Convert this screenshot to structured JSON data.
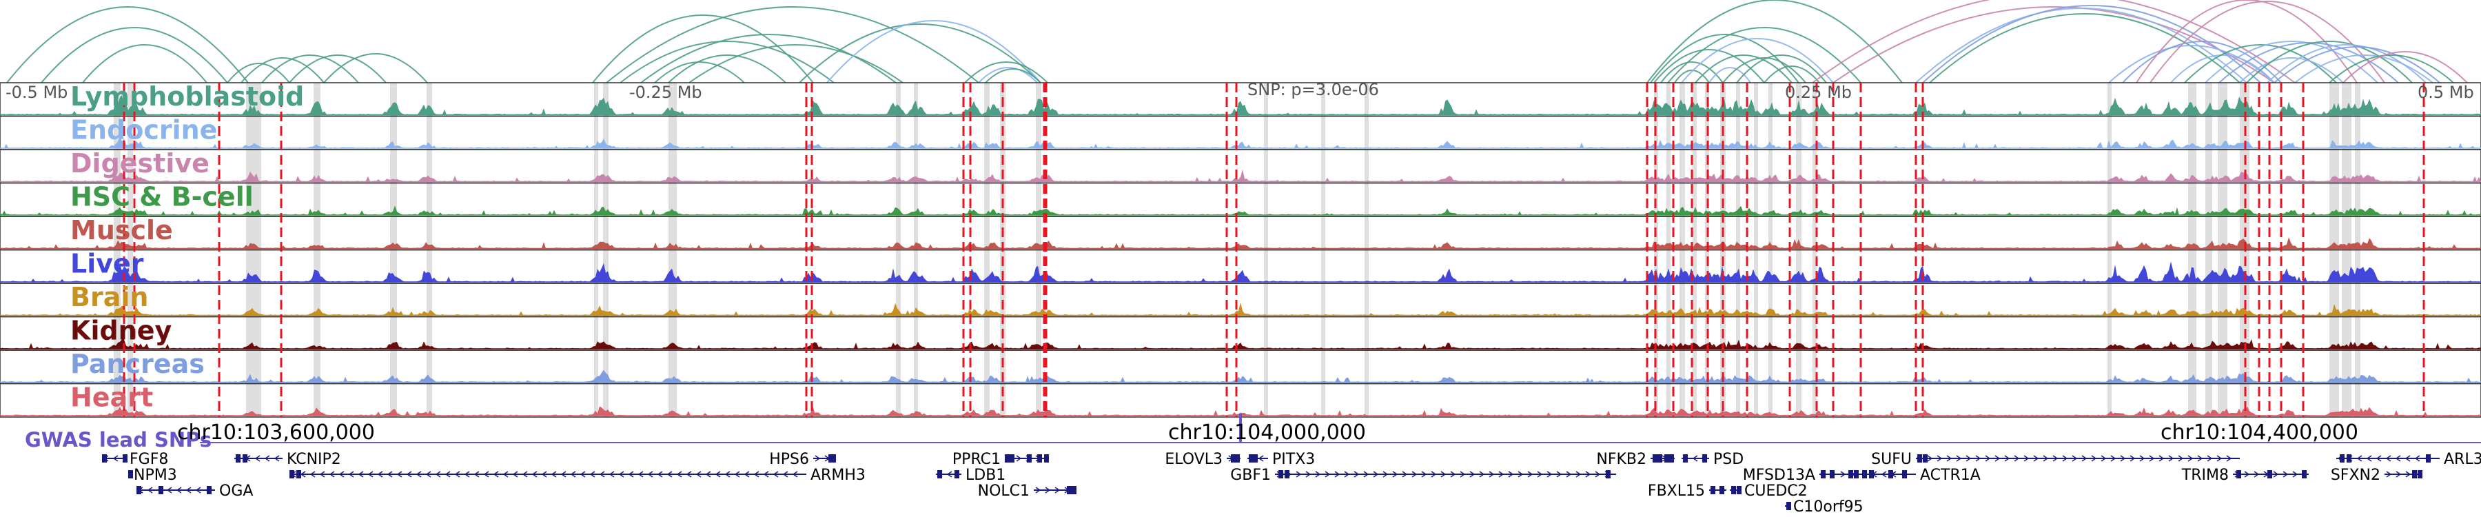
{
  "region_labels": {
    "left": "-0.5 Mb",
    "left_mid": "-0.25 Mb",
    "center": "SNP: p=3.0e-06",
    "right_mid": "0.25 Mb",
    "right": "0.5 Mb"
  },
  "tracks": [
    {
      "label": "Lymphoblastoid",
      "color": "#4c9f86"
    },
    {
      "label": "Endocrine",
      "color": "#8cb4ec"
    },
    {
      "label": "Digestive",
      "color": "#c985ad"
    },
    {
      "label": "HSC & B-cell",
      "color": "#3e9a48"
    },
    {
      "label": "Muscle",
      "color": "#c0574f"
    },
    {
      "label": "Liver",
      "color": "#4347d9"
    },
    {
      "label": "Brain",
      "color": "#c8901e"
    },
    {
      "label": "Kidney",
      "color": "#6b0c0c"
    },
    {
      "label": "Pancreas",
      "color": "#7f9ee0"
    },
    {
      "label": "Heart",
      "color": "#d9606a"
    }
  ],
  "gwas_label": "GWAS lead SNPs",
  "coordinates": [
    "chr10:103,600,000",
    "chr10:104,000,000",
    "chr10:104,400,000"
  ],
  "genes": [
    {
      "name": "FGF8",
      "strand": "-"
    },
    {
      "name": "NPM3",
      "strand": "-"
    },
    {
      "name": "OGA",
      "strand": "-"
    },
    {
      "name": "KCNIP2",
      "strand": "-"
    },
    {
      "name": "ARMH3",
      "strand": "-"
    },
    {
      "name": "HPS6",
      "strand": "+"
    },
    {
      "name": "PPRC1",
      "strand": "+"
    },
    {
      "name": "LDB1",
      "strand": "-"
    },
    {
      "name": "NOLC1",
      "strand": "+"
    },
    {
      "name": "ELOVL3",
      "strand": "+"
    },
    {
      "name": "PITX3",
      "strand": "-"
    },
    {
      "name": "GBF1",
      "strand": "+"
    },
    {
      "name": "NFKB2",
      "strand": "+"
    },
    {
      "name": "PSD",
      "strand": "-"
    },
    {
      "name": "FBXL15",
      "strand": "+"
    },
    {
      "name": "CUEDC2",
      "strand": "-"
    },
    {
      "name": "C10orf95",
      "strand": "+"
    },
    {
      "name": "MFSD13A",
      "strand": "+"
    },
    {
      "name": "ACTR1A",
      "strand": "-"
    },
    {
      "name": "SUFU",
      "strand": "+"
    },
    {
      "name": "TRIM8",
      "strand": "+"
    },
    {
      "name": "ARL3",
      "strand": "-"
    },
    {
      "name": "SFXN2",
      "strand": "+"
    }
  ]
}
